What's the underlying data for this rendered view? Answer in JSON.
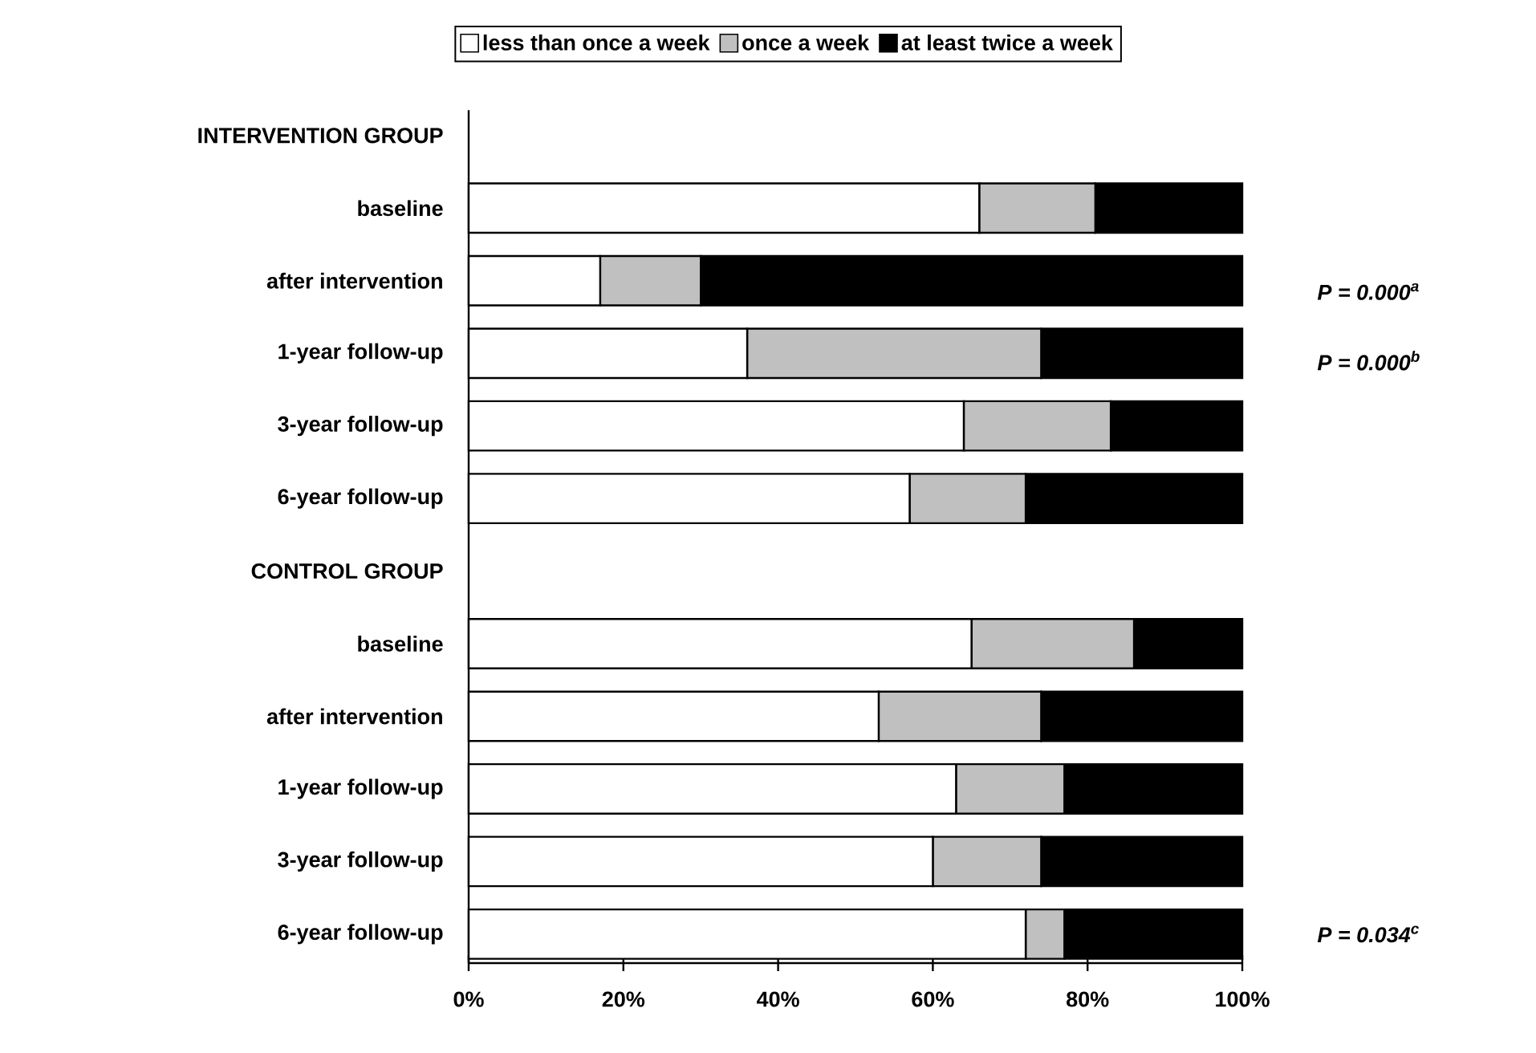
{
  "chart_data": {
    "type": "bar",
    "orientation": "horizontal",
    "stacked": true,
    "categories": [
      "INTERVENTION GROUP",
      "baseline",
      "after intervention",
      "1-year follow-up",
      "3-year follow-up",
      "6-year follow-up",
      "CONTROL GROUP",
      "baseline",
      "after intervention",
      "1-year follow-up",
      "3-year follow-up",
      "6-year follow-up"
    ],
    "series": [
      {
        "name": "less than once a week",
        "color": "#ffffff",
        "values": [
          null,
          66,
          17,
          36,
          64,
          57,
          null,
          65,
          53,
          63,
          60,
          72
        ]
      },
      {
        "name": "once a week",
        "color": "#c0c0c0",
        "values": [
          null,
          15,
          13,
          38,
          19,
          15,
          null,
          21,
          21,
          14,
          14,
          5
        ]
      },
      {
        "name": "at least twice a week",
        "color": "#000000",
        "values": [
          null,
          19,
          70,
          26,
          17,
          28,
          null,
          14,
          26,
          23,
          26,
          23
        ]
      }
    ],
    "xlim": [
      0,
      100
    ],
    "xticks": [
      {
        "value": 0,
        "label": "0%"
      },
      {
        "value": 20,
        "label": "20%"
      },
      {
        "value": 40,
        "label": "40%"
      },
      {
        "value": 60,
        "label": "60%"
      },
      {
        "value": 80,
        "label": "80%"
      },
      {
        "value": 100,
        "label": "100%"
      }
    ],
    "legend": "top",
    "annotations": [
      "P = 0.000$^{a}$",
      "P = 0.000$^{b}$",
      "P = 0.034$^{c}$"
    ]
  }
}
